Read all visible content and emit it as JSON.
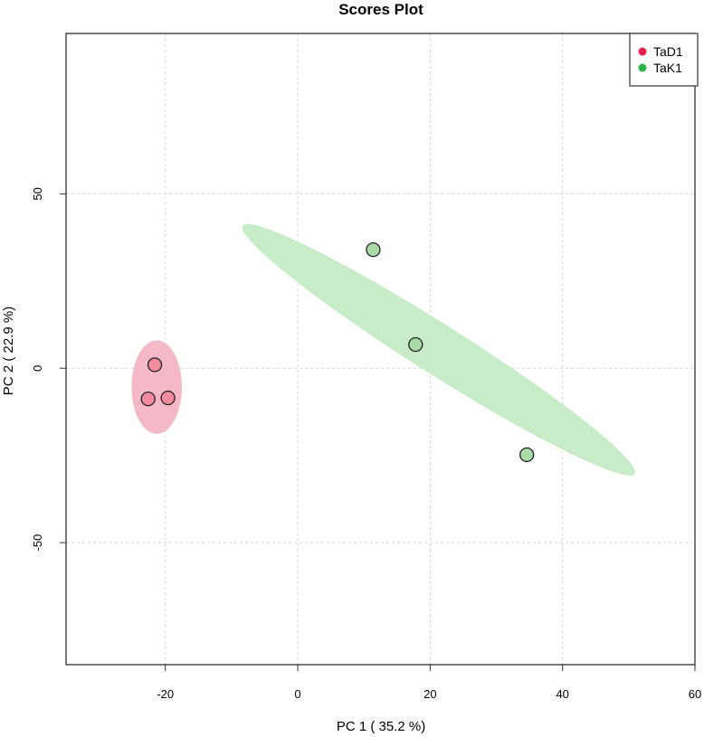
{
  "chart_data": {
    "type": "scatter",
    "title": "Scores Plot",
    "xlabel": "PC 1 ( 35.2 %)",
    "ylabel": "PC 2 ( 22.9 %)",
    "xlim": [
      -35,
      60
    ],
    "ylim": [
      -85,
      96
    ],
    "x_ticks": [
      -20,
      0,
      20,
      40,
      60
    ],
    "y_ticks": [
      -50,
      0,
      50
    ],
    "grid": true,
    "legend_position": "top-right",
    "series": [
      {
        "name": "TaD1",
        "color": "#e0204f",
        "point_fill": "#f28aa0",
        "ellipse_fill": "#f4b8c7",
        "points": [
          {
            "x": -21.6,
            "y": 1.0
          },
          {
            "x": -22.6,
            "y": -8.8
          },
          {
            "x": -19.6,
            "y": -8.5
          }
        ],
        "ellipse": {
          "cx": -21.3,
          "cy": -5.4,
          "rx": 3.8,
          "ry": 13.4,
          "angle_deg": 0
        }
      },
      {
        "name": "TaK1",
        "color": "#2db34a",
        "point_fill": "#a9dca8",
        "ellipse_fill": "#c8ecc8",
        "points": [
          {
            "x": 11.4,
            "y": 34.0
          },
          {
            "x": 17.8,
            "y": 6.8
          },
          {
            "x": 34.6,
            "y": -24.8
          }
        ],
        "ellipse": {
          "cx": 21.3,
          "cy": 5.3,
          "rx": 46.4,
          "ry": 5.4,
          "angle_deg": -50.7
        }
      }
    ]
  }
}
